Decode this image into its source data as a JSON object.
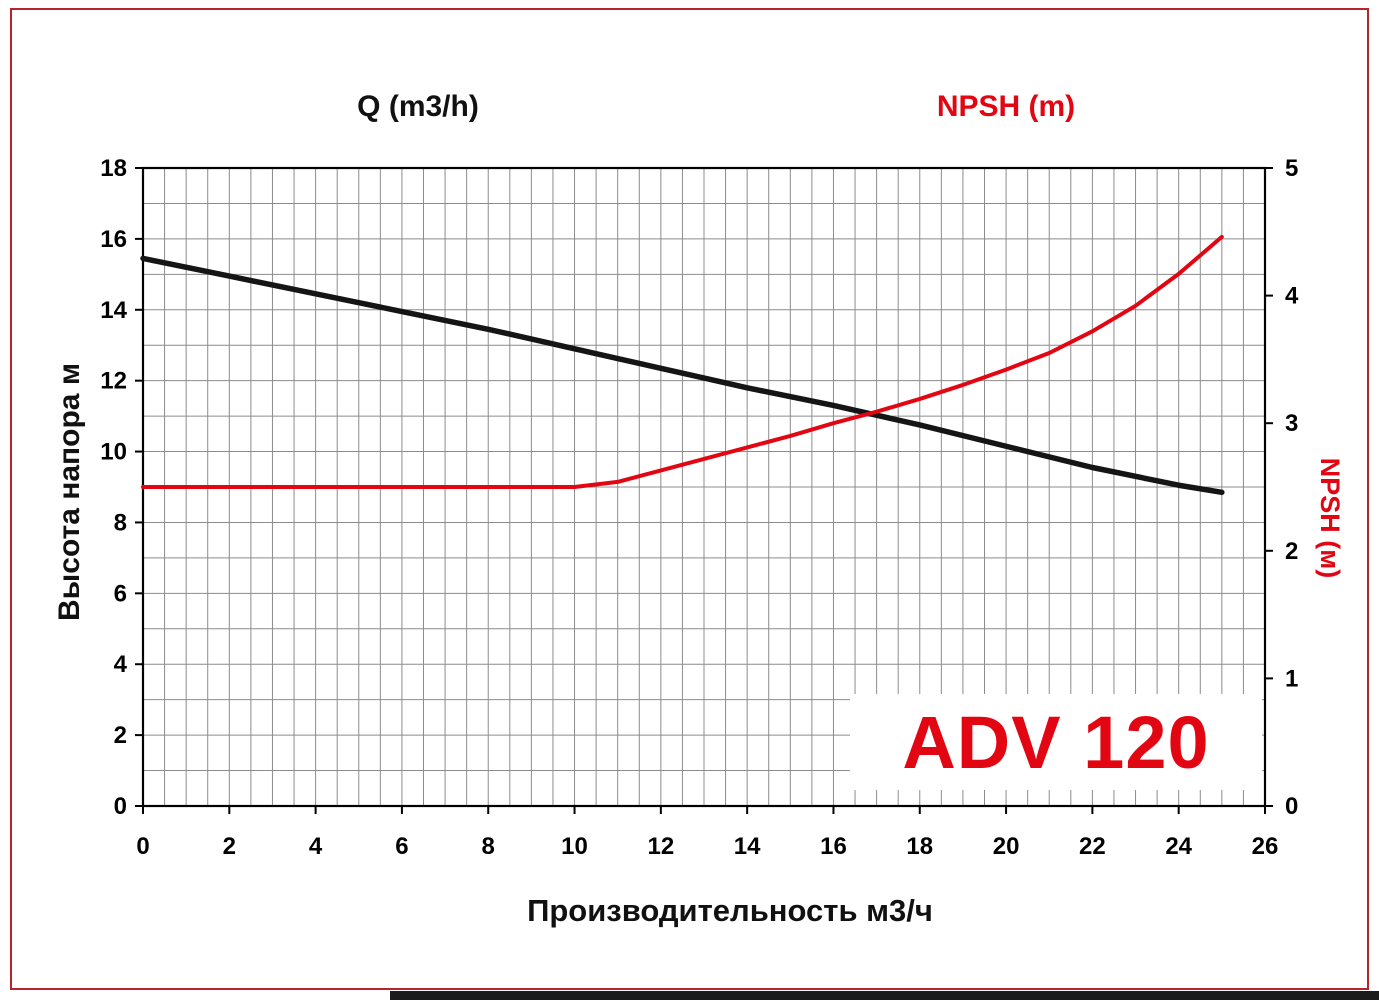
{
  "colors": {
    "accent_red": "#e20613",
    "border_red": "#b5232b",
    "curve_black": "#151515",
    "grid_gray": "#8c8c8c"
  },
  "chart_data": {
    "type": "line",
    "title_left": "Q (m3/h)",
    "title_right": "NPSH (m)",
    "xlabel": "Производительность м3/ч",
    "ylabel_left": "Высота напора м",
    "ylabel_right": "NPSH (м)",
    "annotation": "ADV 120",
    "grid": true,
    "legend": "none",
    "xlim": [
      0,
      26
    ],
    "x_minor_step": 0.5,
    "ylim_left": [
      0,
      18
    ],
    "y_left_minor_step": 1,
    "ylim_right": [
      0,
      5
    ],
    "x_ticks": [
      0,
      2,
      4,
      6,
      8,
      10,
      12,
      14,
      16,
      18,
      20,
      22,
      24,
      26
    ],
    "y_left_ticks": [
      0,
      2,
      4,
      6,
      8,
      10,
      12,
      14,
      16,
      18
    ],
    "y_right_ticks": [
      0,
      1,
      2,
      3,
      4,
      5
    ],
    "series": [
      {
        "name": "head-curve",
        "axis": "left",
        "color_key": "curve_black",
        "points": [
          [
            0,
            15.45
          ],
          [
            2,
            14.95
          ],
          [
            4,
            14.45
          ],
          [
            6,
            13.95
          ],
          [
            8,
            13.45
          ],
          [
            10,
            12.9
          ],
          [
            12,
            12.35
          ],
          [
            14,
            11.8
          ],
          [
            16,
            11.3
          ],
          [
            18,
            10.75
          ],
          [
            20,
            10.15
          ],
          [
            22,
            9.55
          ],
          [
            24,
            9.05
          ],
          [
            25,
            8.85
          ]
        ]
      },
      {
        "name": "npsh-curve",
        "axis": "right",
        "color_key": "accent_red",
        "points": [
          [
            0,
            2.5
          ],
          [
            2,
            2.5
          ],
          [
            4,
            2.5
          ],
          [
            6,
            2.5
          ],
          [
            8,
            2.5
          ],
          [
            10,
            2.5
          ],
          [
            11,
            2.54
          ],
          [
            12,
            2.63
          ],
          [
            13,
            2.72
          ],
          [
            14,
            2.81
          ],
          [
            15,
            2.9
          ],
          [
            16,
            3.0
          ],
          [
            17,
            3.09
          ],
          [
            18,
            3.19
          ],
          [
            19,
            3.3
          ],
          [
            20,
            3.42
          ],
          [
            21,
            3.55
          ],
          [
            22,
            3.72
          ],
          [
            23,
            3.92
          ],
          [
            24,
            4.17
          ],
          [
            25,
            4.46
          ]
        ]
      }
    ]
  }
}
